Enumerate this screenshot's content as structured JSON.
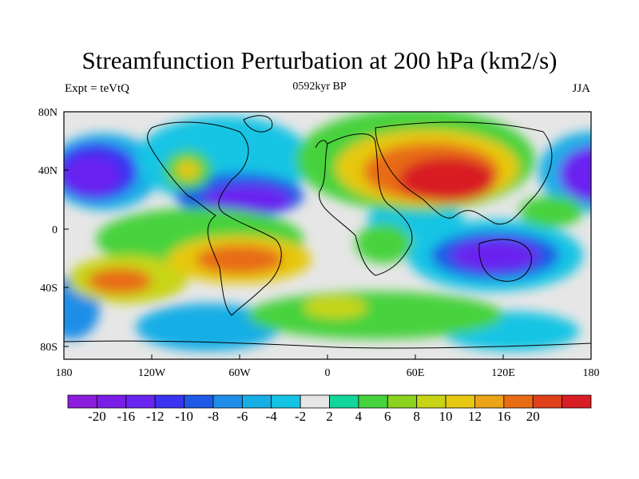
{
  "title": "Streamfunction Perturbation at 200 hPa (km2/s)",
  "subtitle": "0592kyr BP",
  "left_label": "Expt = teVtQ",
  "right_label": "JJA",
  "map": {
    "x_ticks": [
      "180",
      "120W",
      "60W",
      "0",
      "60E",
      "120E",
      "180"
    ],
    "y_ticks": [
      "80N",
      "40N",
      "0",
      "40S",
      "80S"
    ],
    "background": "#e6e6e6"
  },
  "colorbar": {
    "colors": [
      "#8c1ddc",
      "#7a1ee6",
      "#6a24f0",
      "#3a33f2",
      "#1e5ae6",
      "#1f8ee8",
      "#17aee6",
      "#14c4e4",
      "#e6e6e6",
      "#12d79a",
      "#46d23c",
      "#8ad21e",
      "#c8d414",
      "#e6c810",
      "#eba418",
      "#e86c14",
      "#e0401a",
      "#d81e24"
    ],
    "labels": [
      "-20",
      "-16",
      "-12",
      "-10",
      "-8",
      "-6",
      "-4",
      "-2",
      "2",
      "4",
      "6",
      "8",
      "10",
      "12",
      "16",
      "20"
    ]
  }
}
